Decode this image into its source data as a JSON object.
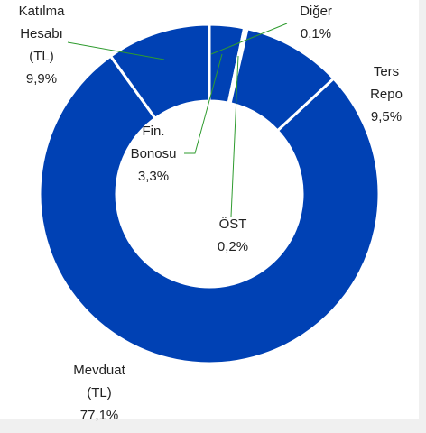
{
  "chart_data": {
    "type": "pie",
    "categories": [
      "Fin.\nBonosu",
      "Diğer",
      "ÖST",
      "Ters Repo",
      "Mevduat\n(TL)",
      "Katılma\nHesabı\n(TL)"
    ],
    "values": [
      3.3,
      0.1,
      0.2,
      9.5,
      77.1,
      9.9
    ],
    "value_labels": [
      "3,3%",
      "0,1%",
      "0,2%",
      "9,5%",
      "77,1%",
      "9,9%"
    ],
    "color": "#0041b4"
  }
}
